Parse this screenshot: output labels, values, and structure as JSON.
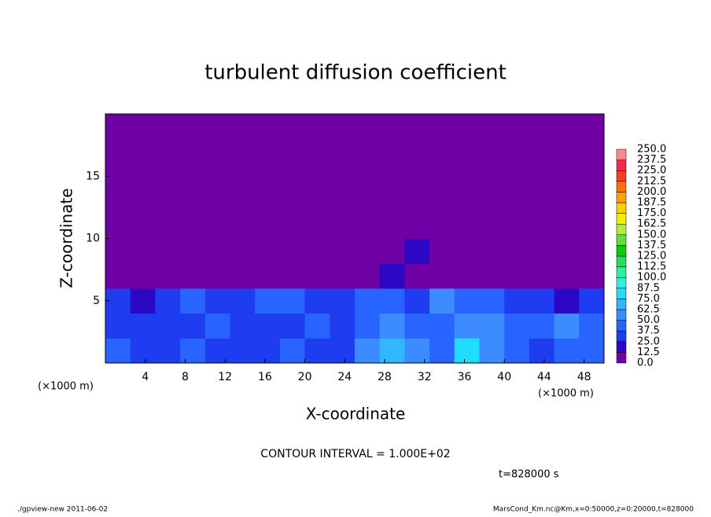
{
  "chart_data": {
    "type": "heatmap",
    "title": "turbulent diffusion coefficient",
    "xlabel": "X-coordinate",
    "ylabel": "Z-coordinate",
    "xunit": "(×1000 m)",
    "xunit2": "(×1000 m)",
    "note": "CONTOUR INTERVAL = 1.000E+02",
    "time": "t=828000 s",
    "footer_left": "./gpview-new  2011-06-02",
    "footer_right": "MarsCond_Km.nc@Km,x=0:50000,z=0:20000,t=828000",
    "xlim": [
      0,
      50
    ],
    "ylim": [
      0,
      20
    ],
    "xticks": [
      4,
      8,
      12,
      16,
      20,
      24,
      28,
      32,
      36,
      40,
      44,
      48
    ],
    "yticks": [
      5,
      10,
      15
    ],
    "xbins": [
      0,
      2.5,
      5,
      7.5,
      10,
      12.5,
      15,
      17.5,
      20,
      22.5,
      25,
      27.5,
      30,
      32.5,
      35,
      37.5,
      40,
      42.5,
      45,
      47.5,
      50
    ],
    "ybins": [
      0,
      2,
      4,
      6,
      8,
      10,
      12,
      14,
      16,
      18,
      20
    ],
    "values": [
      [
        40,
        35,
        30,
        40,
        30,
        25,
        35,
        40,
        35,
        30,
        55,
        70,
        60,
        45,
        80,
        60,
        40,
        35,
        45,
        40
      ],
      [
        35,
        30,
        30,
        35,
        40,
        30,
        30,
        35,
        40,
        30,
        45,
        55,
        40,
        45,
        55,
        50,
        40,
        45,
        50,
        40
      ],
      [
        25,
        20,
        30,
        40,
        35,
        30,
        40,
        45,
        35,
        25,
        40,
        45,
        35,
        50,
        45,
        40,
        30,
        25,
        20,
        25
      ],
      [
        0,
        0,
        0,
        5,
        10,
        0,
        0,
        0,
        0,
        0,
        10,
        15,
        10,
        5,
        0,
        0,
        0,
        0,
        0,
        0
      ],
      [
        0,
        0,
        0,
        0,
        0,
        0,
        5,
        10,
        0,
        0,
        5,
        10,
        20,
        10,
        5,
        0,
        5,
        0,
        0,
        0
      ],
      [
        0,
        0,
        0,
        0,
        0,
        0,
        0,
        0,
        0,
        0,
        0,
        0,
        5,
        10,
        5,
        5,
        0,
        0,
        5,
        0
      ],
      [
        0,
        0,
        0,
        0,
        0,
        0,
        0,
        0,
        0,
        0,
        0,
        0,
        0,
        0,
        0,
        0,
        0,
        0,
        0,
        0
      ],
      [
        0,
        0,
        0,
        0,
        0,
        0,
        0,
        0,
        0,
        0,
        0,
        0,
        0,
        0,
        0,
        0,
        0,
        0,
        0,
        0
      ],
      [
        0,
        0,
        0,
        0,
        0,
        0,
        0,
        0,
        0,
        0,
        0,
        0,
        0,
        0,
        0,
        0,
        0,
        0,
        0,
        0
      ],
      [
        0,
        0,
        0,
        0,
        0,
        0,
        0,
        0,
        0,
        0,
        0,
        0,
        0,
        0,
        0,
        0,
        0,
        0,
        0,
        0
      ]
    ],
    "levels": [
      {
        "value": 0,
        "label": "0.0"
      },
      {
        "value": 12.5,
        "label": "12.5"
      },
      {
        "value": 25,
        "label": "25.0"
      },
      {
        "value": 37.5,
        "label": "37.5"
      },
      {
        "value": 50,
        "label": "50.0"
      },
      {
        "value": 62.5,
        "label": "62.5"
      },
      {
        "value": 75,
        "label": "75.0"
      },
      {
        "value": 87.5,
        "label": "87.5"
      },
      {
        "value": 100,
        "label": "100.0"
      },
      {
        "value": 112.5,
        "label": "112.5"
      },
      {
        "value": 125,
        "label": "125.0"
      },
      {
        "value": 137.5,
        "label": "137.5"
      },
      {
        "value": 150,
        "label": "150.0"
      },
      {
        "value": 162.5,
        "label": "162.5"
      },
      {
        "value": 175,
        "label": "175.0"
      },
      {
        "value": 187.5,
        "label": "187.5"
      },
      {
        "value": 200,
        "label": "200.0"
      },
      {
        "value": 212.5,
        "label": "212.5"
      },
      {
        "value": 225,
        "label": "225.0"
      },
      {
        "value": 237.5,
        "label": "237.5"
      },
      {
        "value": 250,
        "label": "250.0"
      }
    ],
    "colors": [
      "#6e00a6",
      "#2c08c4",
      "#1e3cf0",
      "#2864ff",
      "#3c8cff",
      "#30b8ff",
      "#20dcff",
      "#30f0d8",
      "#30f0a0",
      "#20e060",
      "#10c810",
      "#60e030",
      "#b0f030",
      "#f0f000",
      "#ffd000",
      "#ffa000",
      "#ff7000",
      "#ff3c20",
      "#ff2848",
      "#ff8890"
    ]
  }
}
